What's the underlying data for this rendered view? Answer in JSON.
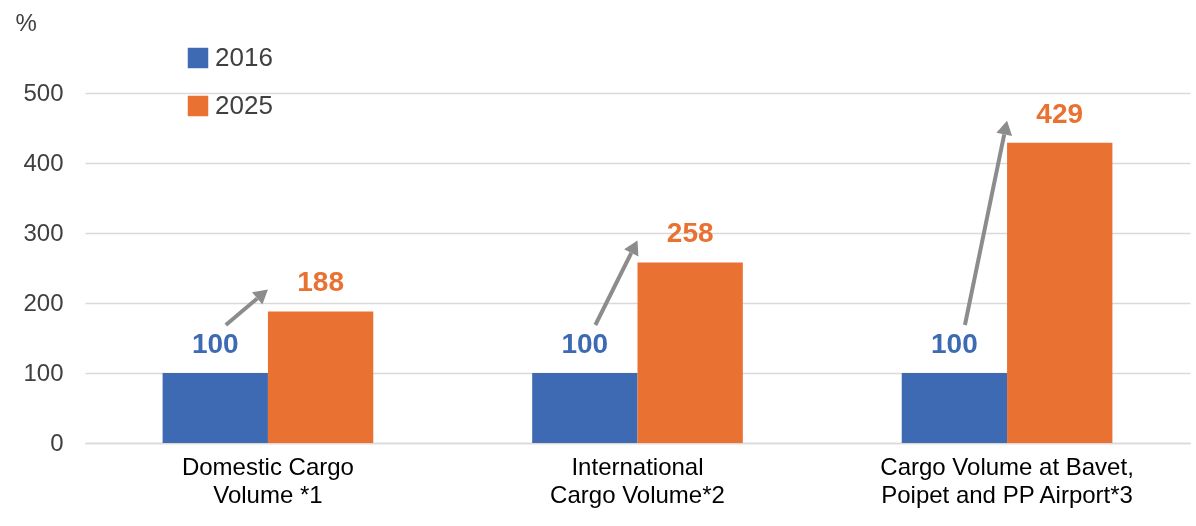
{
  "chart_data": {
    "type": "bar",
    "ylabel": "%",
    "categories": [
      "Domestic Cargo Volume *1",
      "International Cargo Volume*2",
      "Cargo Volume at Bavet, Poipet and PP Airport*3"
    ],
    "series": [
      {
        "name": "2016",
        "color": "#3d6ab3",
        "values": [
          100,
          100,
          100
        ]
      },
      {
        "name": "2025",
        "color": "#e97132",
        "values": [
          188,
          258,
          429
        ]
      }
    ],
    "ylim": [
      0,
      500
    ],
    "yticks": [
      0,
      100,
      200,
      300,
      400,
      500
    ],
    "grid": "y",
    "legend": "top left",
    "data_labels": true
  }
}
